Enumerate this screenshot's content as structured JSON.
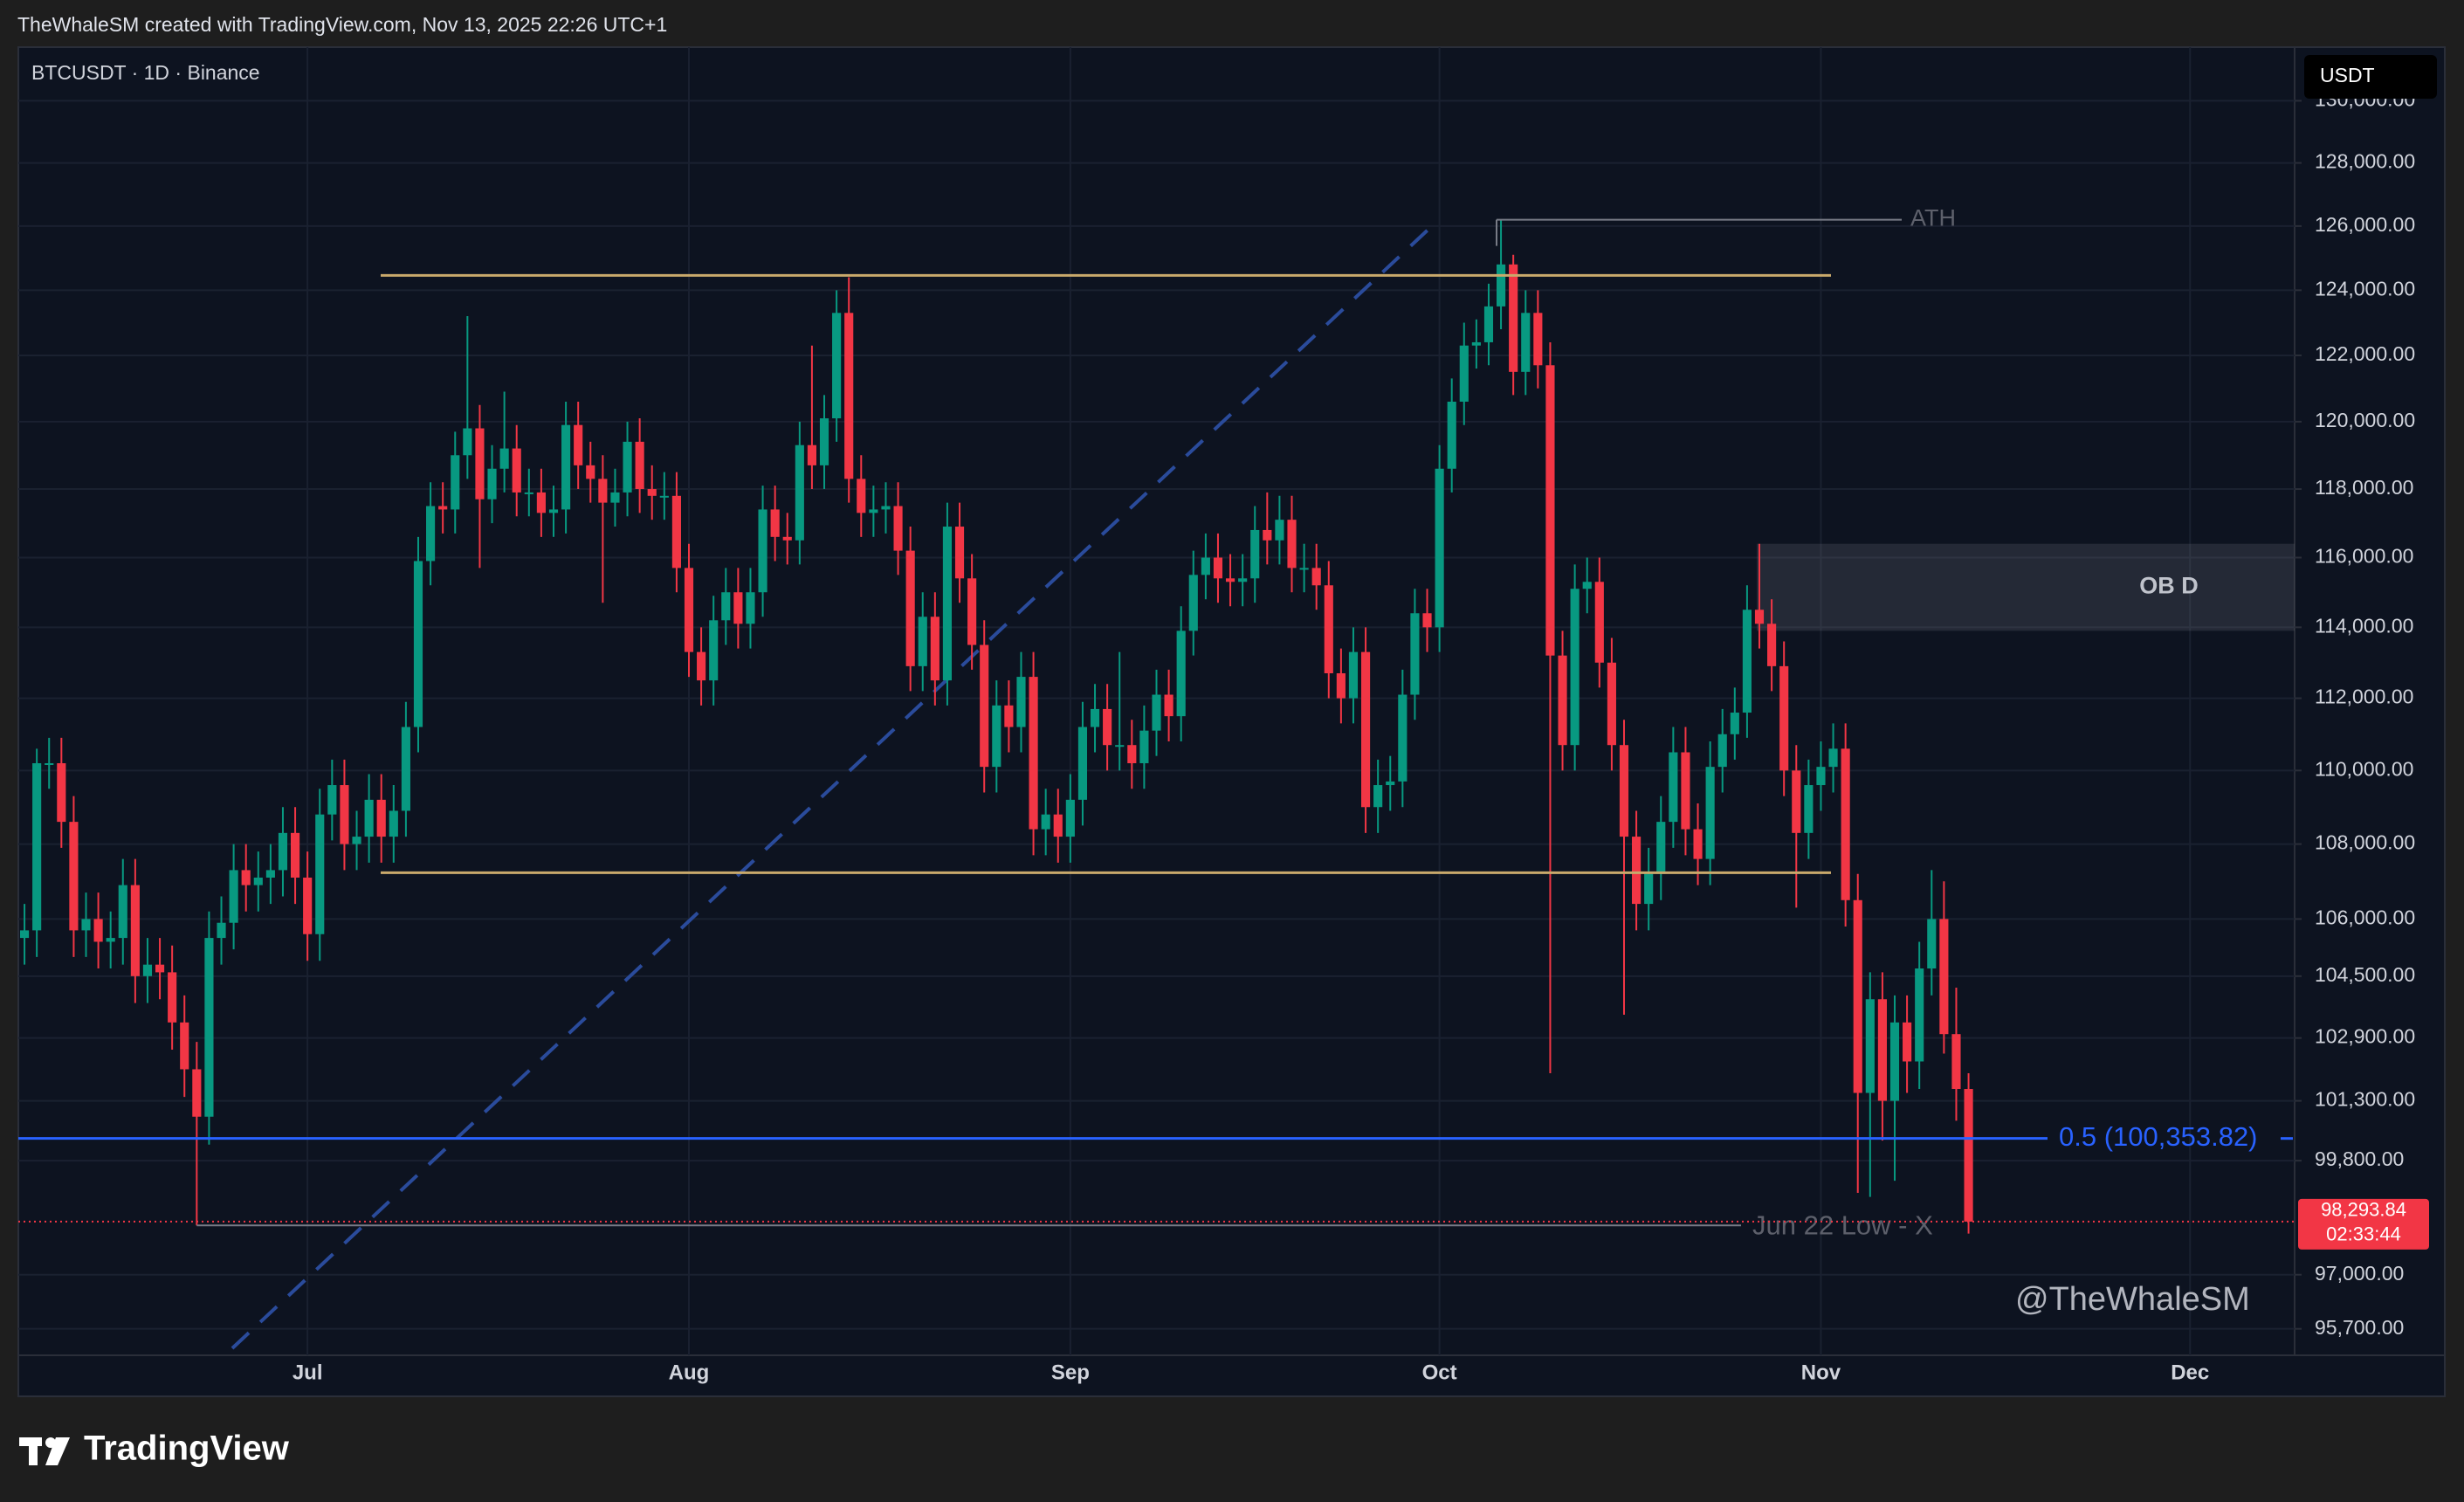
{
  "header": "TheWhaleSM created with TradingView.com, Nov 13, 2025 22:26 UTC+1",
  "brand": "TradingView",
  "chart_data": {
    "type": "candlestick",
    "title": "BTCUSDT · 1D · Binance",
    "currency": "USDT",
    "watermark": "@TheWhaleSM",
    "up_color": "#089981",
    "down_color": "#f23645",
    "log_scale": true,
    "grid": true,
    "categories": [
      null,
      null,
      null,
      null,
      null,
      null,
      null,
      null,
      null,
      null,
      null,
      null,
      null,
      null,
      null,
      null,
      null,
      null,
      null,
      null,
      null,
      null,
      null,
      "Jul",
      null,
      null,
      null,
      null,
      null,
      null,
      null,
      null,
      null,
      null,
      null,
      null,
      null,
      null,
      null,
      null,
      null,
      null,
      null,
      null,
      null,
      null,
      null,
      null,
      null,
      null,
      null,
      null,
      null,
      null,
      "Aug",
      null,
      null,
      null,
      null,
      null,
      null,
      null,
      null,
      null,
      null,
      null,
      null,
      null,
      null,
      null,
      null,
      null,
      null,
      null,
      null,
      null,
      null,
      null,
      null,
      null,
      null,
      null,
      null,
      null,
      null,
      "Sep",
      null,
      null,
      null,
      null,
      null,
      null,
      null,
      null,
      null,
      null,
      null,
      null,
      null,
      null,
      null,
      null,
      null,
      null,
      null,
      null,
      null,
      null,
      null,
      null,
      null,
      null,
      null,
      null,
      null,
      "Oct",
      null,
      null,
      null,
      null,
      null,
      null,
      null,
      null,
      null,
      null,
      null,
      null,
      null,
      null,
      null,
      null,
      null,
      null,
      null,
      null,
      null,
      null,
      null,
      null,
      null,
      null,
      null,
      null,
      null,
      null,
      "Nov",
      null,
      null,
      null,
      null,
      null,
      null,
      null,
      null,
      null,
      null,
      null,
      null,
      null,
      null,
      null,
      null,
      null,
      null,
      null,
      null,
      null,
      null,
      null,
      null,
      null,
      null,
      null,
      null,
      null,
      "Dec",
      null,
      null,
      null,
      null,
      null,
      null,
      null,
      null
    ],
    "open": [
      105500,
      105700,
      110200,
      110200,
      108600,
      105700,
      106000,
      105400,
      105500,
      106900,
      104500,
      104800,
      104600,
      103300,
      102100,
      100900,
      105500,
      105900,
      107300,
      106900,
      107100,
      107300,
      108300,
      107100,
      105600,
      108800,
      109600,
      108000,
      108200,
      109200,
      108200,
      108900,
      111200,
      115900,
      117500,
      117400,
      119000,
      119800,
      117700,
      118600,
      119200,
      117900,
      117900,
      117300,
      117400,
      119900,
      118700,
      118300,
      117600,
      117900,
      119400,
      118000,
      117800,
      117800,
      115700,
      113300,
      112500,
      114200,
      115000,
      114100,
      115000,
      117400,
      116600,
      116500,
      119300,
      118700,
      120100,
      123300,
      118300,
      117300,
      117400,
      117500,
      116200,
      112900,
      114300,
      112500,
      116900,
      115400,
      113500,
      110100,
      111800,
      111200,
      112600,
      108400,
      108800,
      108200,
      109200,
      111200,
      111700,
      110700,
      110700,
      110200,
      111100,
      112100,
      111500,
      113900,
      115500,
      116000,
      115400,
      115300,
      115400,
      116800,
      116500,
      117100,
      115700,
      115700,
      115200,
      112700,
      112000,
      113300,
      109000,
      109600,
      109700,
      112100,
      114400,
      114000,
      118600,
      120600,
      122300,
      122400,
      123500,
      124800,
      121500,
      123300,
      121700,
      113200,
      110700,
      115100,
      115300,
      113000,
      110700,
      108200,
      106400,
      107200,
      108600,
      110500,
      108400,
      107600,
      110100,
      111000,
      111600,
      114500,
      114100,
      112900,
      110000,
      108300,
      109600,
      110100,
      110600,
      106500,
      101500,
      103900,
      101300,
      103300,
      102300,
      104700,
      106000,
      103000,
      101600,
      null,
      null,
      null,
      null,
      null,
      null,
      null,
      null,
      null,
      null,
      null,
      null,
      null,
      null,
      null,
      null,
      null,
      null,
      null,
      null,
      null,
      null,
      null,
      null,
      null,
      null
    ],
    "high": [
      106400,
      110600,
      110900,
      110900,
      109300,
      106700,
      106700,
      106200,
      107600,
      107600,
      105500,
      105500,
      105300,
      104000,
      102800,
      106200,
      106600,
      108000,
      108000,
      107800,
      108000,
      109000,
      109000,
      107800,
      109500,
      110300,
      110300,
      108900,
      109900,
      109900,
      109600,
      111900,
      116600,
      118200,
      118200,
      119700,
      123200,
      120500,
      119300,
      120900,
      119900,
      118600,
      118600,
      118100,
      120600,
      120600,
      119400,
      119000,
      118600,
      120000,
      120100,
      118700,
      118500,
      118500,
      116400,
      114000,
      114900,
      115700,
      115700,
      115700,
      118100,
      118100,
      117300,
      120000,
      122300,
      120800,
      124000,
      124400,
      119000,
      118100,
      118200,
      118200,
      116900,
      115000,
      115000,
      117600,
      117600,
      116100,
      114200,
      112500,
      112500,
      113300,
      113300,
      109500,
      109500,
      109900,
      111900,
      112400,
      112400,
      113300,
      111400,
      111800,
      112800,
      112800,
      114600,
      116200,
      116700,
      116700,
      116100,
      116100,
      117500,
      117900,
      117800,
      117800,
      116400,
      116400,
      115900,
      113400,
      114000,
      114000,
      110300,
      110400,
      112800,
      115100,
      115100,
      119300,
      121300,
      123000,
      123100,
      124200,
      126200,
      125100,
      124000,
      124000,
      122400,
      113900,
      115800,
      116000,
      116000,
      113700,
      111400,
      108900,
      107900,
      109300,
      111200,
      111200,
      109100,
      110800,
      111700,
      112300,
      115200,
      116400,
      114800,
      113600,
      110700,
      110300,
      110800,
      111300,
      111300,
      107200,
      104600,
      104600,
      104000,
      104000,
      105400,
      107300,
      107000,
      104200,
      102000,
      null,
      null,
      null,
      null,
      null,
      null,
      null,
      null,
      null,
      null,
      null,
      null,
      null,
      null,
      null,
      null,
      null,
      null,
      null,
      null,
      null,
      null,
      null,
      null,
      null,
      null
    ],
    "low": [
      104800,
      105000,
      109500,
      107900,
      105000,
      105000,
      104700,
      104700,
      104800,
      103800,
      103800,
      103900,
      102600,
      101400,
      98200,
      100200,
      104800,
      105200,
      106200,
      106200,
      106400,
      106600,
      106400,
      104900,
      104900,
      108100,
      107300,
      107300,
      107500,
      107500,
      107500,
      108200,
      110500,
      115200,
      116700,
      116700,
      118300,
      115700,
      117000,
      117900,
      117200,
      117200,
      116600,
      116600,
      116700,
      118000,
      117600,
      114700,
      116900,
      117200,
      117300,
      117100,
      117100,
      115000,
      112600,
      111800,
      111800,
      113500,
      113400,
      113400,
      114300,
      115900,
      115800,
      115800,
      118000,
      118000,
      119400,
      117600,
      116600,
      116600,
      116700,
      115500,
      112200,
      112200,
      111800,
      111800,
      114700,
      112800,
      109400,
      109400,
      110500,
      110500,
      107700,
      107700,
      107500,
      107500,
      108500,
      110500,
      110000,
      110000,
      109500,
      109500,
      110400,
      110800,
      110800,
      113200,
      114800,
      114700,
      114600,
      114600,
      114700,
      115800,
      115800,
      115000,
      115000,
      114500,
      112000,
      111300,
      111300,
      108300,
      108300,
      108900,
      109000,
      111400,
      113300,
      113300,
      117900,
      119900,
      121600,
      121700,
      122800,
      120800,
      120800,
      121000,
      102000,
      110000,
      110000,
      114400,
      112300,
      110000,
      103500,
      105700,
      105700,
      106500,
      107900,
      107700,
      106900,
      106900,
      109400,
      110300,
      110900,
      113400,
      112200,
      109300,
      106300,
      107600,
      108900,
      109400,
      105800,
      99000,
      98900,
      100300,
      99300,
      101500,
      101600,
      104000,
      102500,
      100800,
      98000,
      null,
      null,
      null,
      null,
      null,
      null,
      null,
      null,
      null,
      null,
      null,
      null,
      null,
      null,
      null,
      null,
      null,
      null,
      null,
      null,
      null,
      null,
      null,
      null,
      null,
      null
    ],
    "close": [
      105700,
      110200,
      110200,
      108600,
      105700,
      106000,
      105400,
      105500,
      106900,
      104500,
      104800,
      104600,
      103300,
      102100,
      100900,
      105500,
      105900,
      107300,
      106900,
      107100,
      107300,
      108300,
      107100,
      105600,
      108800,
      109600,
      108000,
      108200,
      109200,
      108200,
      108900,
      111200,
      115900,
      117500,
      117400,
      119000,
      119800,
      117700,
      118600,
      119200,
      117900,
      117900,
      117300,
      117400,
      119900,
      118700,
      118300,
      117600,
      117900,
      119400,
      118000,
      117800,
      117800,
      115700,
      113300,
      112500,
      114200,
      115000,
      114100,
      115000,
      117400,
      116600,
      116500,
      119300,
      118700,
      120100,
      123300,
      118300,
      117300,
      117400,
      117500,
      116200,
      112900,
      114300,
      112500,
      116900,
      115400,
      113500,
      110100,
      111800,
      111200,
      112600,
      108400,
      108800,
      108200,
      109200,
      111200,
      111700,
      110700,
      110700,
      110200,
      111100,
      112100,
      111500,
      113900,
      115500,
      116000,
      115400,
      115300,
      115400,
      116800,
      116500,
      117100,
      115700,
      115700,
      115200,
      112700,
      112000,
      113300,
      109000,
      109600,
      109700,
      112100,
      114400,
      114000,
      118600,
      120600,
      122300,
      122400,
      123500,
      124800,
      121500,
      123300,
      121700,
      113200,
      110700,
      115100,
      115300,
      113000,
      110700,
      108200,
      106400,
      107200,
      108600,
      110500,
      108400,
      107600,
      110100,
      111000,
      111600,
      114500,
      114100,
      112900,
      110000,
      108300,
      109600,
      110100,
      110600,
      106500,
      101500,
      103900,
      101300,
      103300,
      102300,
      104700,
      106000,
      103000,
      101600,
      98293.84,
      null,
      null,
      null,
      null,
      null,
      null,
      null,
      null,
      null,
      null,
      null,
      null,
      null,
      null,
      null,
      null,
      null,
      null,
      null,
      null,
      null,
      null,
      null,
      null,
      null,
      null
    ],
    "last_price_label": "98,293.84",
    "countdown": "02:33:44",
    "ylim": [
      95070,
      131750
    ],
    "yticks": [
      {
        "value": 130000,
        "label": "130,000.00"
      },
      {
        "value": 128000,
        "label": "128,000.00"
      },
      {
        "value": 126000,
        "label": "126,000.00"
      },
      {
        "value": 124000,
        "label": "124,000.00"
      },
      {
        "value": 122000,
        "label": "122,000.00"
      },
      {
        "value": 120000,
        "label": "120,000.00"
      },
      {
        "value": 118000,
        "label": "118,000.00"
      },
      {
        "value": 116000,
        "label": "116,000.00"
      },
      {
        "value": 114000,
        "label": "114,000.00"
      },
      {
        "value": 112000,
        "label": "112,000.00"
      },
      {
        "value": 110000,
        "label": "110,000.00"
      },
      {
        "value": 108000,
        "label": "108,000.00"
      },
      {
        "value": 106000,
        "label": "106,000.00"
      },
      {
        "value": 104500,
        "label": "104,500.00"
      },
      {
        "value": 102900,
        "label": "102,900.00"
      },
      {
        "value": 101300,
        "label": "101,300.00"
      },
      {
        "value": 99800,
        "label": "99,800.00"
      },
      {
        "value": 97000,
        "label": "97,000.00"
      },
      {
        "value": 95700,
        "label": "95,700.00"
      }
    ],
    "range": {
      "top": 124460,
      "bottom": 107230
    },
    "ath": {
      "label": "ATH",
      "value": 126200
    },
    "jun_low": {
      "label": "Jun 22 Low - X",
      "value": 98200
    },
    "fib": {
      "label": "0.5 (100,353.82)",
      "value": 100353.82
    },
    "ob": {
      "label": "OB D",
      "top": 116400,
      "bottom": 113900
    }
  }
}
